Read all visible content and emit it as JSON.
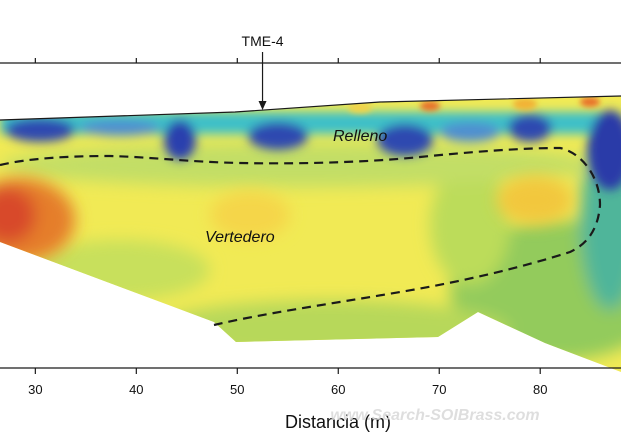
{
  "marker": {
    "label": "TME-4",
    "x": 52.5
  },
  "regions": {
    "fill_label": "Relleno",
    "landfill_label": "Vertedero"
  },
  "axis": {
    "xlabel": "Distancia (m)",
    "ticks": [
      30,
      40,
      50,
      60,
      70,
      80
    ],
    "xlim": [
      26.5,
      88
    ]
  },
  "colors": {
    "yellow": "#f3ea4c",
    "green": "#8fc95a",
    "blue": "#2f49b0",
    "orange": "#ea6f2a",
    "red": "#d94a2a",
    "line": "#1a1a1a"
  },
  "watermark": "www.Search-SOIBrass.com"
}
